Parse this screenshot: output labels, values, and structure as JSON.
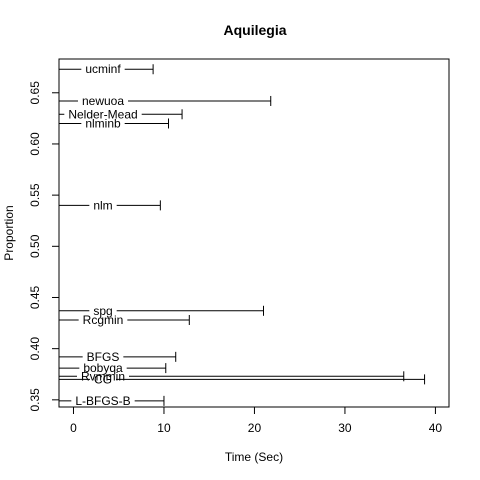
{
  "chart_data": {
    "type": "scatter",
    "title": "Aquilegia",
    "xlabel": "Time (Sec)",
    "ylabel": "Proportion",
    "xlim": [
      -1.6,
      41.5
    ],
    "ylim": [
      0.343,
      0.683
    ],
    "xticks": [
      0,
      10,
      20,
      30,
      40
    ],
    "yticks": [
      0.35,
      0.4,
      0.45,
      0.5,
      0.55,
      0.6,
      0.65
    ],
    "grid": false,
    "legend": "none",
    "points": [
      {
        "label": "ucminf",
        "y": 0.673,
        "xmin": -1.6,
        "xmax": 8.8
      },
      {
        "label": "newuoa",
        "y": 0.642,
        "xmin": -1.6,
        "xmax": 21.8
      },
      {
        "label": "Nelder-Mead",
        "y": 0.629,
        "xmin": -1.6,
        "xmax": 12.0
      },
      {
        "label": "nlminb",
        "y": 0.62,
        "xmin": -1.6,
        "xmax": 10.5
      },
      {
        "label": "nlm",
        "y": 0.54,
        "xmin": -1.6,
        "xmax": 9.6
      },
      {
        "label": "spg",
        "y": 0.437,
        "xmin": -1.6,
        "xmax": 21.0
      },
      {
        "label": "Rcgmin",
        "y": 0.428,
        "xmin": -1.6,
        "xmax": 12.8
      },
      {
        "label": "BFGS",
        "y": 0.392,
        "xmin": -1.6,
        "xmax": 11.3
      },
      {
        "label": "bobyqa",
        "y": 0.381,
        "xmin": -1.6,
        "xmax": 10.2
      },
      {
        "label": "Rvmmin",
        "y": 0.373,
        "xmin": -1.6,
        "xmax": 36.5
      },
      {
        "label": "CG",
        "y": 0.37,
        "xmin": -1.6,
        "xmax": 38.8
      },
      {
        "label": "L-BFGS-B",
        "y": 0.349,
        "xmin": -1.6,
        "xmax": 10.0
      }
    ]
  }
}
